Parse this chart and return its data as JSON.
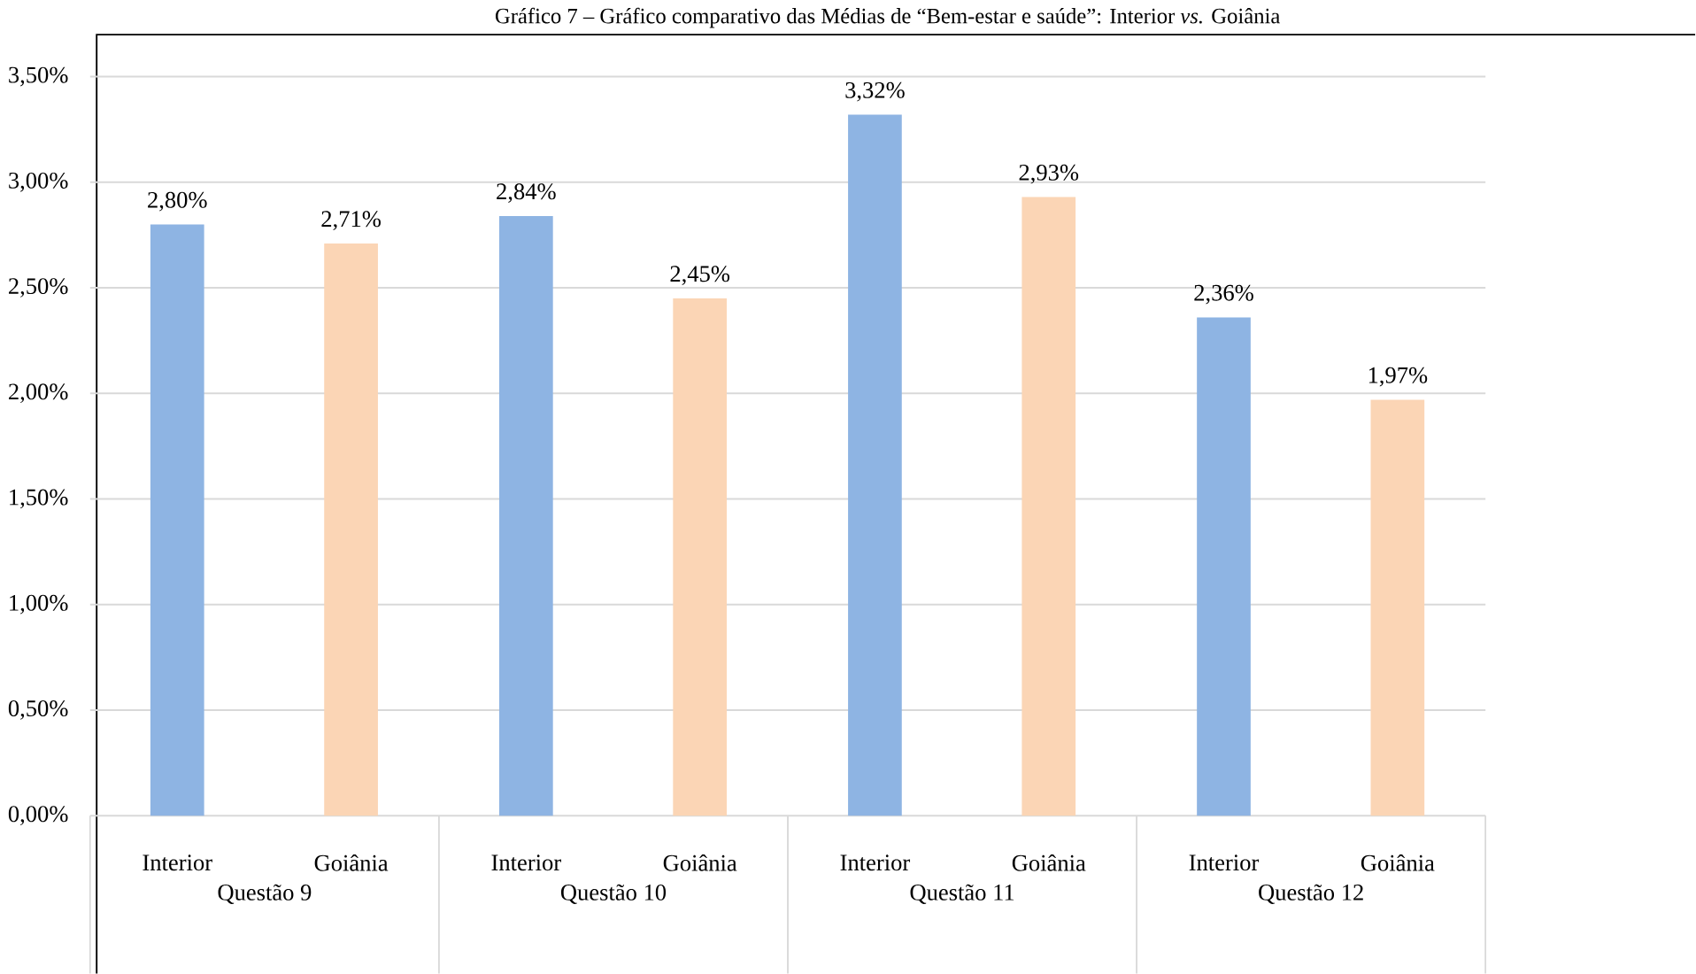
{
  "chart_data": {
    "type": "bar",
    "title": "Gráfico 7 – Gráfico comparativo das Médias de “Bem-estar e saúde”: Interior *vs.* Goiânia",
    "categories": [
      "Questão 9",
      "Questão 10",
      "Questão 11",
      "Questão 12"
    ],
    "series": [
      {
        "name": "Interior",
        "color": "#8eb4e3",
        "values": [
          2.8,
          2.84,
          3.32,
          2.36
        ],
        "value_labels": [
          "2,80%",
          "2,84%",
          "3,32%",
          "2,36%"
        ]
      },
      {
        "name": "Goiânia",
        "color": "#fbd5b5",
        "values": [
          2.71,
          2.45,
          2.93,
          1.97
        ],
        "value_labels": [
          "2,71%",
          "2,45%",
          "2,93%",
          "1,97%"
        ]
      }
    ],
    "ylim": [
      0,
      3.5
    ],
    "yticks": [
      {
        "value": 0,
        "label": "0,00%"
      },
      {
        "value": 0.5,
        "label": "0,50%"
      },
      {
        "value": 1,
        "label": "1,00%"
      },
      {
        "value": 1.5,
        "label": "1,50%"
      },
      {
        "value": 2,
        "label": "2,00%"
      },
      {
        "value": 2.5,
        "label": "2,50%"
      },
      {
        "value": 3,
        "label": "3,00%"
      },
      {
        "value": 3.5,
        "label": "3,50%"
      }
    ],
    "grid": "y",
    "legend": false
  }
}
